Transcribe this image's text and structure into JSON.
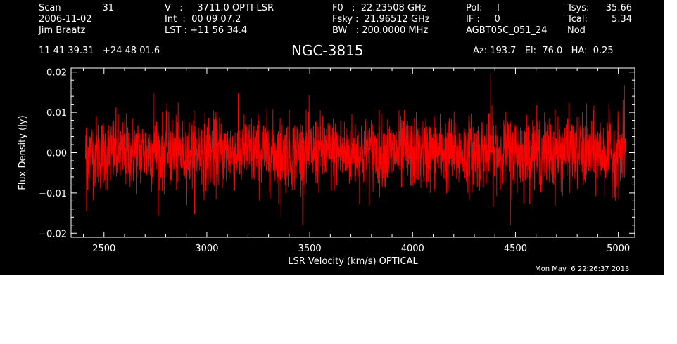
{
  "header": {
    "col1": {
      "scan_label": "Scan",
      "scan_value": "31",
      "date": "2006-11-02",
      "observer": "Jim Braatz"
    },
    "col2": {
      "v_line": "V   :     3711.0 OPTI-LSR",
      "int_line": "Int  :  00 09 07.2",
      "lst_line": "LST : +11 56 34.4"
    },
    "col3": {
      "f0_line": "F0   :  22.23508 GHz",
      "fsky_line": "Fsky :  21.96512 GHz",
      "bw_line": "BW   : 200.0000 MHz"
    },
    "col4": {
      "pol_line": "Pol:     I",
      "if_line": "IF :     0",
      "project": "AGBT05C_051_24"
    },
    "col5": {
      "tsys_label": "Tsys:",
      "tsys_value": "35.66",
      "tcal_label": "Tcal:",
      "tcal_value": "5.34",
      "mode": "Nod"
    },
    "coords": "11 41 39.31   +24 48 01.6",
    "source": "NGC-3815",
    "pointing": "Az: 193.7   El:  76.0   HA:  0.25",
    "timestamp": "Mon May  6 22:26:37 2013"
  },
  "colors": {
    "background": "#000000",
    "axes": "#ffffff",
    "series": "#ff0000"
  },
  "chart_data": {
    "type": "line",
    "title": "NGC-3815",
    "xlabel": "LSR Velocity (km/s) OPTICAL",
    "ylabel": "Flux Density (Jy)",
    "xlim": [
      2340,
      5080
    ],
    "ylim": [
      -0.021,
      0.021
    ],
    "x_ticks": [
      2500,
      3000,
      3500,
      4000,
      4500,
      5000
    ],
    "x_tick_labels": [
      "2500",
      "3000",
      "3500",
      "4000",
      "4500",
      "5000"
    ],
    "y_ticks": [
      -0.02,
      -0.01,
      0.0,
      0.01,
      0.02
    ],
    "y_tick_labels": [
      "−0.02",
      "−0.01",
      "0.00",
      "0.01",
      "0.02"
    ],
    "grid": false,
    "series": [
      {
        "color": "#ff0000",
        "x_range": [
          2410,
          5035
        ],
        "n_points": 2600,
        "mean": 0.0,
        "rms": 0.0045,
        "sample_peaks": [
          {
            "x": 2415,
            "y": -0.0145
          },
          {
            "x": 4380,
            "y": 0.0195
          },
          {
            "x": 4475,
            "y": -0.018
          },
          {
            "x": 5030,
            "y": 0.0168
          },
          {
            "x": 3360,
            "y": -0.016
          },
          {
            "x": 2740,
            "y": 0.0147
          }
        ]
      }
    ]
  }
}
